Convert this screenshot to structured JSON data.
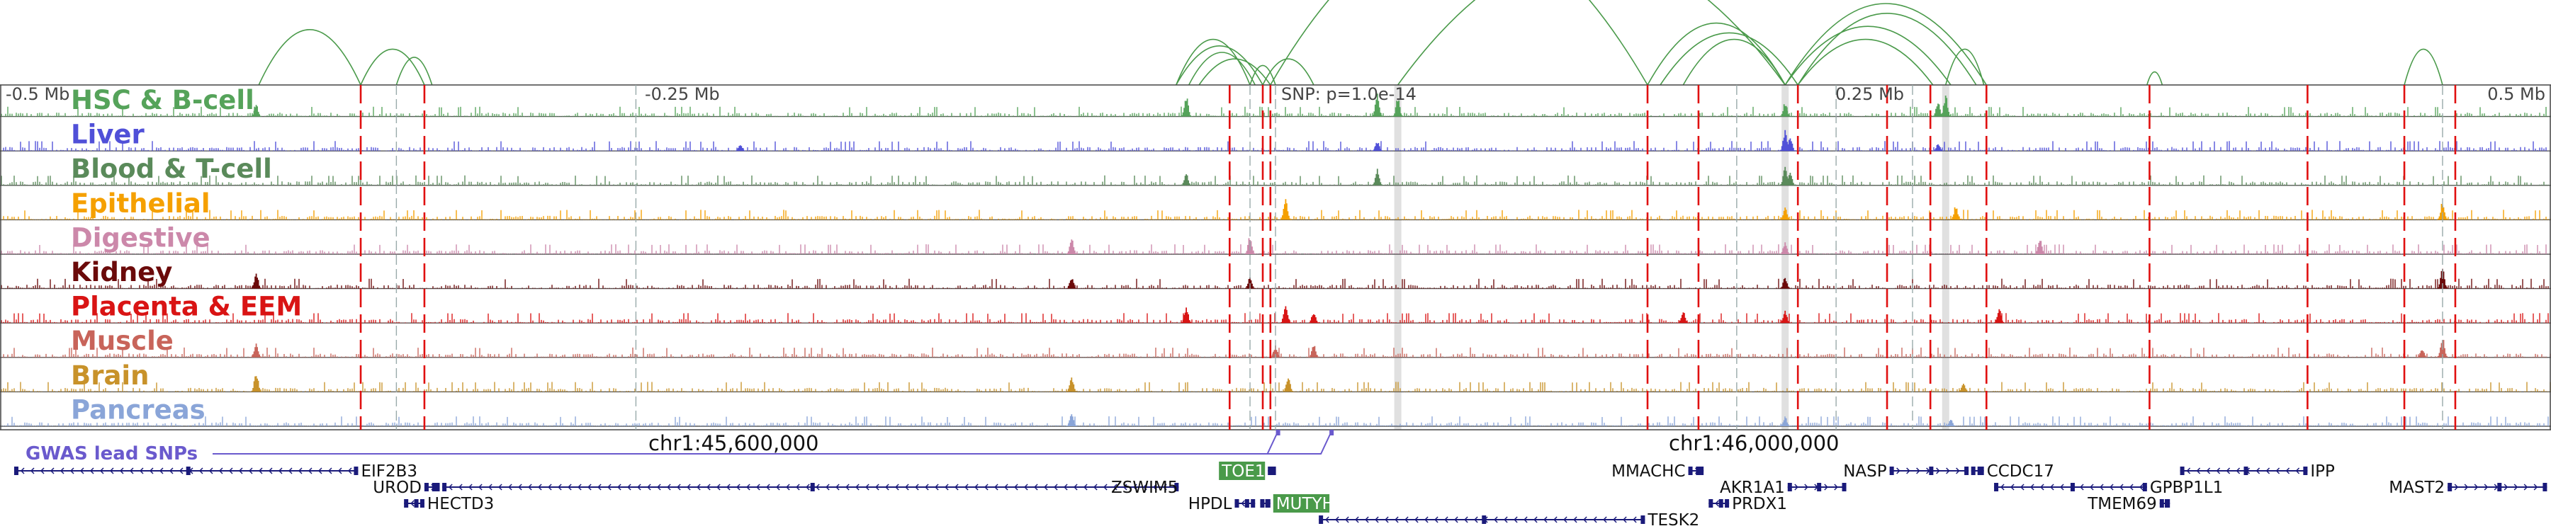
{
  "chart_data": {
    "type": "genome-browser",
    "region": {
      "chrom": "chr1",
      "start": 45398000,
      "end": 46398000
    },
    "scale_labels": [
      "-0.5 Mb",
      "-0.25 Mb",
      "0.25 Mb",
      "0.5 Mb"
    ],
    "position_labels": [
      "chr1:45,600,000",
      "chr1:46,000,000"
    ],
    "snp_label": "SNP: p=1.0e-14",
    "gwas_label": "GWAS lead SNPs",
    "tracks": [
      {
        "name": "HSC & B-cell",
        "color": "#55a35a",
        "peaks": [
          [
            0.1,
            0.5
          ],
          [
            0.465,
            0.9
          ],
          [
            0.54,
            1.0
          ],
          [
            0.548,
            0.8
          ],
          [
            0.7,
            0.6
          ],
          [
            0.76,
            0.7
          ],
          [
            0.763,
            0.9
          ]
        ]
      },
      {
        "name": "Liver",
        "color": "#5050d8",
        "peaks": [
          [
            0.29,
            0.3
          ],
          [
            0.54,
            0.4
          ],
          [
            0.7,
            0.9
          ],
          [
            0.702,
            0.6
          ],
          [
            0.76,
            0.3
          ]
        ]
      },
      {
        "name": "Blood & T-cell",
        "color": "#5a8a5a",
        "peaks": [
          [
            0.465,
            0.5
          ],
          [
            0.54,
            0.7
          ],
          [
            0.7,
            0.8
          ],
          [
            0.702,
            0.6
          ]
        ]
      },
      {
        "name": "Epithelial",
        "color": "#f5a000",
        "peaks": [
          [
            0.504,
            0.9
          ],
          [
            0.7,
            0.5
          ],
          [
            0.767,
            0.6
          ],
          [
            0.958,
            0.8
          ]
        ]
      },
      {
        "name": "Digestive",
        "color": "#cc88aa",
        "peaks": [
          [
            0.42,
            0.7
          ],
          [
            0.49,
            0.8
          ],
          [
            0.7,
            0.5
          ],
          [
            0.8,
            0.7
          ]
        ]
      },
      {
        "name": "Kidney",
        "color": "#6b0a0a",
        "peaks": [
          [
            0.1,
            0.7
          ],
          [
            0.42,
            0.5
          ],
          [
            0.49,
            0.5
          ],
          [
            0.7,
            0.5
          ],
          [
            0.958,
            0.9
          ]
        ]
      },
      {
        "name": "Placenta & EEM",
        "color": "#d91414",
        "peaks": [
          [
            0.465,
            0.7
          ],
          [
            0.504,
            0.8
          ],
          [
            0.515,
            0.5
          ],
          [
            0.66,
            0.5
          ],
          [
            0.7,
            0.5
          ],
          [
            0.784,
            0.6
          ]
        ]
      },
      {
        "name": "Muscle",
        "color": "#c8645a",
        "peaks": [
          [
            0.1,
            0.6
          ],
          [
            0.5,
            0.5
          ],
          [
            0.515,
            0.6
          ],
          [
            0.95,
            0.4
          ],
          [
            0.958,
            0.9
          ]
        ]
      },
      {
        "name": "Brain",
        "color": "#c8922a",
        "peaks": [
          [
            0.1,
            0.9
          ],
          [
            0.42,
            0.6
          ],
          [
            0.505,
            0.7
          ],
          [
            0.77,
            0.4
          ]
        ]
      },
      {
        "name": "Pancreas",
        "color": "#8aa5d8",
        "peaks": [
          [
            0.42,
            0.5
          ],
          [
            0.7,
            0.4
          ],
          [
            0.765,
            0.3
          ]
        ]
      }
    ],
    "genes": [
      {
        "name": "EIF2B3",
        "start": 0.005,
        "end": 0.14,
        "row": 0,
        "dir": "-",
        "label": "right",
        "highlight": false
      },
      {
        "name": "UROD",
        "start": 0.166,
        "end": 0.172,
        "row": 1,
        "dir": "+",
        "label": "left",
        "highlight": false
      },
      {
        "name": "ZSWIM5",
        "start": 0.173,
        "end": 0.462,
        "row": 1,
        "dir": "-",
        "label": "right-end",
        "highlight": false
      },
      {
        "name": "HECTD3",
        "start": 0.158,
        "end": 0.166,
        "row": 2,
        "dir": "-",
        "label": "right",
        "highlight": false
      },
      {
        "name": "TOE1",
        "start": 0.497,
        "end": 0.5,
        "row": 0,
        "dir": "-",
        "label": "left-box",
        "highlight": true
      },
      {
        "name": "HPDL",
        "start": 0.484,
        "end": 0.492,
        "row": 2,
        "dir": "-",
        "label": "left",
        "highlight": false
      },
      {
        "name": "MUTYH",
        "start": 0.494,
        "end": 0.498,
        "row": 2,
        "dir": "-",
        "label": "right-box",
        "highlight": true
      },
      {
        "name": "TESK2",
        "start": 0.517,
        "end": 0.645,
        "row": 3,
        "dir": "-",
        "label": "right",
        "highlight": false
      },
      {
        "name": "MMACHC",
        "start": 0.662,
        "end": 0.668,
        "row": 0,
        "dir": "+",
        "label": "left",
        "highlight": false
      },
      {
        "name": "AKR1A1",
        "start": 0.701,
        "end": 0.724,
        "row": 1,
        "dir": "+",
        "label": "left",
        "highlight": false
      },
      {
        "name": "PRDX1",
        "start": 0.67,
        "end": 0.678,
        "row": 2,
        "dir": "-",
        "label": "right",
        "highlight": false
      },
      {
        "name": "NASP",
        "start": 0.741,
        "end": 0.772,
        "row": 0,
        "dir": "+",
        "label": "left",
        "highlight": false
      },
      {
        "name": "CCDC17",
        "start": 0.773,
        "end": 0.778,
        "row": 0,
        "dir": "-",
        "label": "right",
        "highlight": false
      },
      {
        "name": "GPBP1L1",
        "start": 0.782,
        "end": 0.842,
        "row": 1,
        "dir": "-",
        "label": "right",
        "highlight": false
      },
      {
        "name": "TMEM69",
        "start": 0.847,
        "end": 0.851,
        "row": 2,
        "dir": "+",
        "label": "left",
        "highlight": false
      },
      {
        "name": "IPP",
        "start": 0.855,
        "end": 0.905,
        "row": 0,
        "dir": "-",
        "label": "right",
        "highlight": false
      },
      {
        "name": "MAST2",
        "start": 0.96,
        "end": 0.999,
        "row": 1,
        "dir": "+",
        "label": "left",
        "highlight": false
      }
    ],
    "loops": [
      [
        0.101,
        0.141,
        0.34
      ],
      [
        0.141,
        0.166,
        0.22
      ],
      [
        0.155,
        0.169,
        0.17
      ],
      [
        0.461,
        0.49,
        0.28
      ],
      [
        0.461,
        0.495,
        0.24
      ],
      [
        0.466,
        0.492,
        0.2
      ],
      [
        0.47,
        0.498,
        0.16
      ],
      [
        0.49,
        0.5,
        0.12
      ],
      [
        0.495,
        0.515,
        0.16
      ],
      [
        0.498,
        0.646,
        1.0
      ],
      [
        0.548,
        0.7,
        0.82
      ],
      [
        0.646,
        0.7,
        0.38
      ],
      [
        0.651,
        0.705,
        0.32
      ],
      [
        0.66,
        0.7,
        0.28
      ],
      [
        0.7,
        0.779,
        0.5
      ],
      [
        0.705,
        0.775,
        0.44
      ],
      [
        0.7,
        0.765,
        0.36
      ],
      [
        0.705,
        0.758,
        0.28
      ],
      [
        0.763,
        0.778,
        0.22
      ],
      [
        0.842,
        0.848,
        0.08
      ],
      [
        0.943,
        0.958,
        0.22
      ]
    ],
    "red_lines": [
      0.141,
      0.166,
      0.482,
      0.495,
      0.498,
      0.646,
      0.666,
      0.705,
      0.74,
      0.757,
      0.779,
      0.843,
      0.905,
      0.943,
      0.963
    ],
    "gray_lines": [
      0.155,
      0.249,
      0.49,
      0.5,
      0.681,
      0.72,
      0.75,
      0.958
    ],
    "gray_bands": [
      0.548,
      0.7,
      0.763
    ],
    "gwas_snps": [
      0.501,
      0.522
    ]
  }
}
